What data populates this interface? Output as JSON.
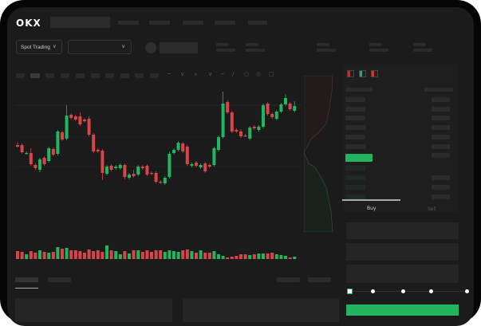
{
  "header": {
    "logo": "OKX"
  },
  "toolbar": {
    "market_select": "Spot Trading"
  },
  "order_panel": {
    "tabs": [
      "Buy",
      "Sell"
    ],
    "active_tab": "Buy",
    "slider_percent": 0,
    "slider_steps": 5
  },
  "colors": {
    "up": "#22b45f",
    "down": "#d9434a",
    "background": "#1b1b1b",
    "accent": "#22b45f"
  },
  "icons": [
    "chevron-down-icon",
    "indicator-icon",
    "draw-icon",
    "camera-icon",
    "settings-icon",
    "fullscreen-icon",
    "orderbook-both-icon",
    "orderbook-bids-icon",
    "orderbook-asks-icon"
  ],
  "chart_data": {
    "type": "candlestick",
    "candles": [
      [
        58,
        61,
        55,
        56
      ],
      [
        58,
        60,
        47,
        49
      ],
      [
        47,
        50,
        46,
        48
      ],
      [
        48,
        54,
        32,
        34
      ],
      [
        33,
        35,
        27,
        29
      ],
      [
        27,
        42,
        24,
        40
      ],
      [
        42,
        44,
        32,
        34
      ],
      [
        38,
        56,
        36,
        54
      ],
      [
        53,
        55,
        44,
        46
      ],
      [
        47,
        77,
        45,
        75
      ],
      [
        74,
        76,
        63,
        65
      ],
      [
        66,
        108,
        64,
        95
      ],
      [
        96,
        98,
        90,
        92
      ],
      [
        94,
        96,
        88,
        90
      ],
      [
        94,
        99,
        82,
        84
      ],
      [
        90,
        92,
        86,
        88
      ],
      [
        91,
        94,
        69,
        71
      ],
      [
        71,
        73,
        48,
        50
      ],
      [
        52,
        54,
        48,
        50
      ],
      [
        51,
        53,
        14,
        23
      ],
      [
        22,
        33,
        20,
        31
      ],
      [
        32,
        34,
        25,
        27
      ],
      [
        29,
        33,
        27,
        31
      ],
      [
        29,
        35,
        27,
        33
      ],
      [
        33,
        35,
        15,
        18
      ],
      [
        17,
        23,
        15,
        21
      ],
      [
        22,
        27,
        17,
        19
      ],
      [
        21,
        33,
        19,
        31
      ],
      [
        31,
        33,
        27,
        29
      ],
      [
        32,
        34,
        19,
        21
      ],
      [
        23,
        25,
        20,
        22
      ],
      [
        23,
        25,
        10,
        12
      ],
      [
        12,
        14,
        9,
        11
      ],
      [
        10,
        19,
        8,
        17
      ],
      [
        18,
        50,
        16,
        47
      ],
      [
        48,
        54,
        46,
        52
      ],
      [
        52,
        63,
        50,
        61
      ],
      [
        60,
        62,
        48,
        50
      ],
      [
        56,
        58,
        32,
        34
      ],
      [
        32,
        36,
        30,
        34
      ],
      [
        36,
        38,
        30,
        32
      ],
      [
        30,
        35,
        28,
        33
      ],
      [
        35,
        37,
        23,
        25
      ],
      [
        33,
        35,
        29,
        31
      ],
      [
        33,
        56,
        31,
        54
      ],
      [
        52,
        70,
        50,
        68
      ],
      [
        68,
        125,
        66,
        110
      ],
      [
        112,
        114,
        97,
        99
      ],
      [
        99,
        101,
        73,
        75
      ],
      [
        77,
        79,
        73,
        75
      ],
      [
        75,
        78,
        67,
        69
      ],
      [
        70,
        72,
        68,
        69
      ],
      [
        66,
        82,
        64,
        80
      ],
      [
        81,
        83,
        77,
        79
      ],
      [
        77,
        83,
        75,
        81
      ],
      [
        81,
        110,
        79,
        108
      ],
      [
        110,
        112,
        95,
        97
      ],
      [
        97,
        99,
        91,
        93
      ],
      [
        91,
        102,
        89,
        100
      ],
      [
        100,
        111,
        98,
        109
      ],
      [
        109,
        122,
        107,
        117
      ],
      [
        110,
        112,
        101,
        103
      ],
      [
        101,
        113,
        99,
        107
      ]
    ],
    "volumes": [
      10,
      9,
      6,
      10,
      8,
      11,
      9,
      8,
      9,
      15,
      13,
      14,
      11,
      11,
      10,
      8,
      12,
      10,
      11,
      9,
      17,
      11,
      10,
      6,
      10,
      7,
      11,
      11,
      9,
      11,
      9,
      11,
      11,
      9,
      11,
      10,
      9,
      11,
      12,
      10,
      8,
      11,
      8,
      8,
      10,
      6,
      4,
      2,
      3,
      4,
      6,
      6,
      5,
      6,
      7,
      7,
      7,
      8,
      6,
      5,
      4,
      2,
      3
    ]
  }
}
